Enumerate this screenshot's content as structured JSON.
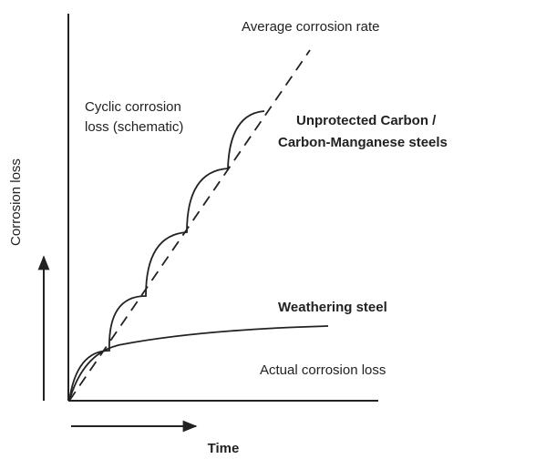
{
  "labels": {
    "y_axis": "Corrosion loss",
    "x_axis": "Time",
    "average_rate": "Average corrosion rate",
    "cyclic_line1": "Cyclic corrosion",
    "cyclic_line2": "loss (schematic)",
    "unprotected_line1": "Unprotected Carbon /",
    "unprotected_line2": "Carbon-Manganese steels",
    "weathering": "Weathering steel",
    "actual": "Actual corrosion loss"
  }
}
